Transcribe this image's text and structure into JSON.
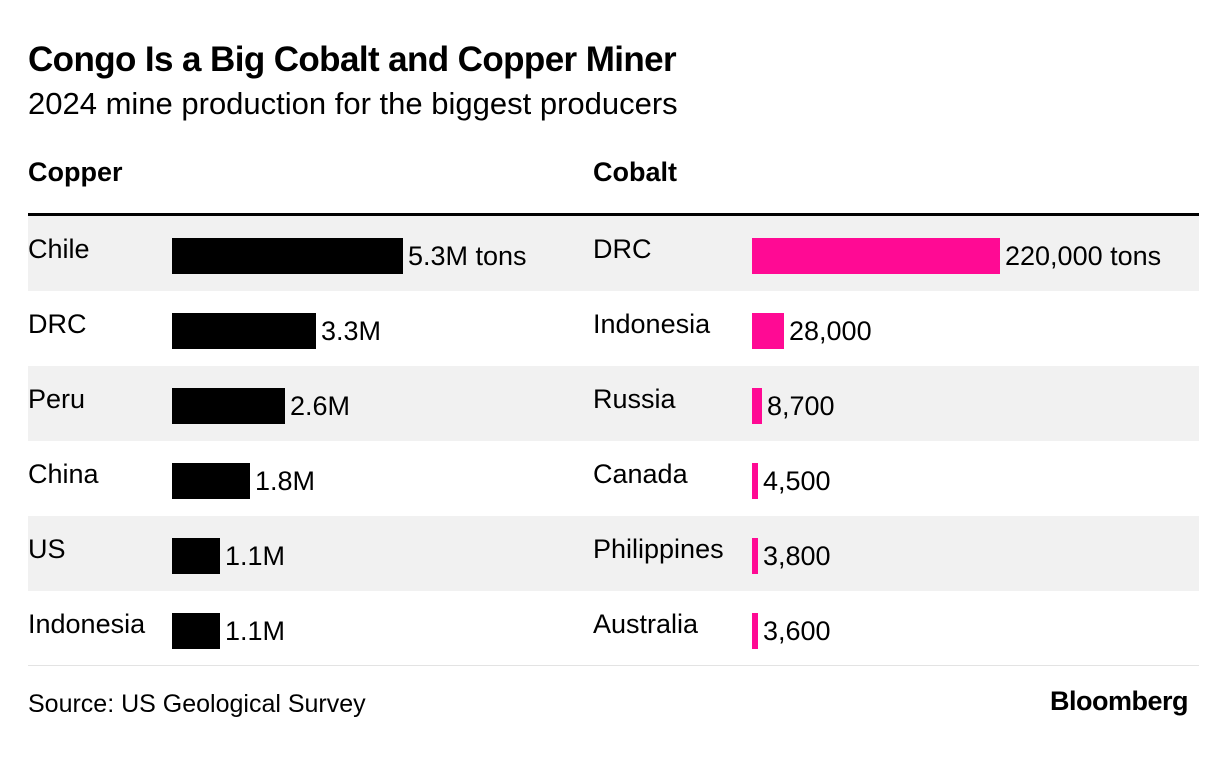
{
  "header": {
    "title": "Congo Is a Big Cobalt and Copper Miner",
    "subtitle": "2024 mine production for the biggest producers"
  },
  "footer": {
    "source": "Source: US Geological Survey",
    "logo": "Bloomberg"
  },
  "colors": {
    "copper": "#000000",
    "cobalt": "#ff0a94",
    "band": "#f1f1f1"
  },
  "chart_data": [
    {
      "type": "bar",
      "orientation": "horizontal",
      "title": "Copper",
      "unit": "tons",
      "categories": [
        "Chile",
        "DRC",
        "Peru",
        "China",
        "US",
        "Indonesia"
      ],
      "values": [
        5300000,
        3300000,
        2600000,
        1800000,
        1100000,
        1100000
      ],
      "labels": [
        "5.3M tons",
        "3.3M",
        "2.6M",
        "1.8M",
        "1.1M",
        "1.1M"
      ],
      "xlim": [
        0,
        5300000
      ]
    },
    {
      "type": "bar",
      "orientation": "horizontal",
      "title": "Cobalt",
      "unit": "tons",
      "categories": [
        "DRC",
        "Indonesia",
        "Russia",
        "Canada",
        "Philippines",
        "Australia"
      ],
      "values": [
        220000,
        28000,
        8700,
        4500,
        3800,
        3600
      ],
      "labels": [
        "220,000 tons",
        "28,000",
        "8,700",
        "4,500",
        "3,800",
        "3,600"
      ],
      "xlim": [
        0,
        220000
      ]
    }
  ]
}
